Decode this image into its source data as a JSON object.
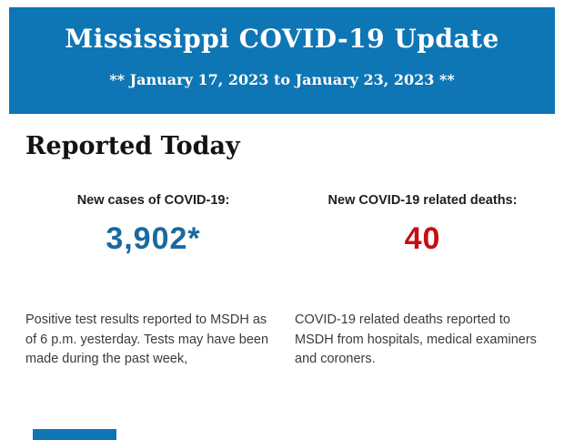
{
  "banner": {
    "background": "#0e76b4",
    "text_color": "#ffffff",
    "title": "Mississippi COVID-19 Update",
    "subtitle": "** January 17, 2023 to January 23, 2023 **"
  },
  "section": {
    "heading": "Reported Today"
  },
  "stats": {
    "cases": {
      "label": "New cases of COVID-19:",
      "value": "3,902*",
      "value_color": "#1a699e",
      "description": "Positive test results reported to MSDH as\nof 6 p.m. yesterday. Tests may have been\nmade during the past week,"
    },
    "deaths": {
      "label": "New COVID-19 related deaths:",
      "value": "40",
      "value_color": "#c50f12",
      "description": "COVID-19 related deaths reported to\nMSDH from hospitals, medical examiners\nand coroners."
    }
  },
  "footer": {
    "partial_banner_color": "#0e76b4"
  }
}
